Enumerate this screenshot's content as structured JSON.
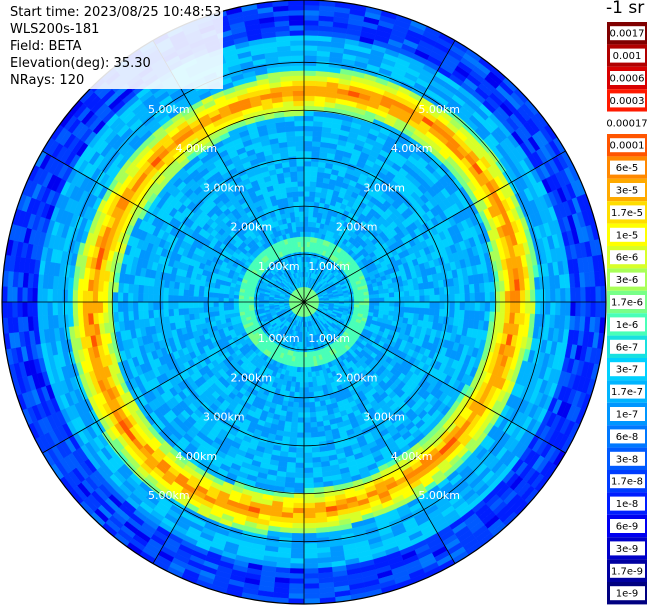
{
  "info": {
    "start_time": "Start time: 2023/08/25 10:48:53",
    "instrument": "WLS200s-181",
    "field": "Field: BETA",
    "elevation": "Elevation(deg): 35.30",
    "nrays": "NRays: 120"
  },
  "colorbar": {
    "unit": "-1 sr",
    "labels": [
      "0.0017",
      "0.001",
      "0.0006",
      "0.0003",
      "0.00017",
      "0.0001",
      "6e-5",
      "3e-5",
      "1.7e-5",
      "1e-5",
      "6e-6",
      "3e-6",
      "1.7e-6",
      "1e-6",
      "6e-7",
      "3e-7",
      "1.7e-7",
      "1e-7",
      "6e-8",
      "3e-8",
      "1.7e-8",
      "1e-8",
      "6e-9",
      "3e-9",
      "1.7e-9",
      "1e-9"
    ],
    "colors": [
      "#7f0000",
      "#b00000",
      "#d80000",
      "#ff1a00",
      "#ffffff",
      "#ff5500",
      "#ff8800",
      "#ffaa00",
      "#ffdd00",
      "#ffff00",
      "#d8ff28",
      "#a8ff58",
      "#78ff88",
      "#48ffb8",
      "#18e0e0",
      "#00d0ff",
      "#00b4ff",
      "#0096ff",
      "#0078ff",
      "#005aff",
      "#003cff",
      "#001eff",
      "#0000f0",
      "#0000c8",
      "#0000a0",
      "#000080"
    ]
  },
  "chart_data": {
    "type": "heatmap",
    "projection": "polar PPI scan",
    "range_rings_km": [
      1,
      2,
      3,
      4,
      5
    ],
    "ring_labels": [
      "1.00km",
      "2.00km",
      "3.00km",
      "4.00km",
      "5.00km"
    ],
    "max_range_km": 6.3,
    "azimuth_lines_deg": [
      0,
      30,
      60,
      90,
      120,
      150,
      180,
      210,
      240,
      270,
      300,
      330
    ],
    "rays": 120,
    "color_scale": "log",
    "value_range": [
      1e-09,
      0.0017
    ],
    "features": [
      {
        "name": "background",
        "value": 1e-07
      },
      {
        "name": "bright ring",
        "range_km": 4.4,
        "value": 3e-05
      },
      {
        "name": "inner ring",
        "range_km": 1.2,
        "value": 3e-06
      },
      {
        "name": "outer edge",
        "range_km": 6.0,
        "value": 1.7e-08
      }
    ]
  }
}
